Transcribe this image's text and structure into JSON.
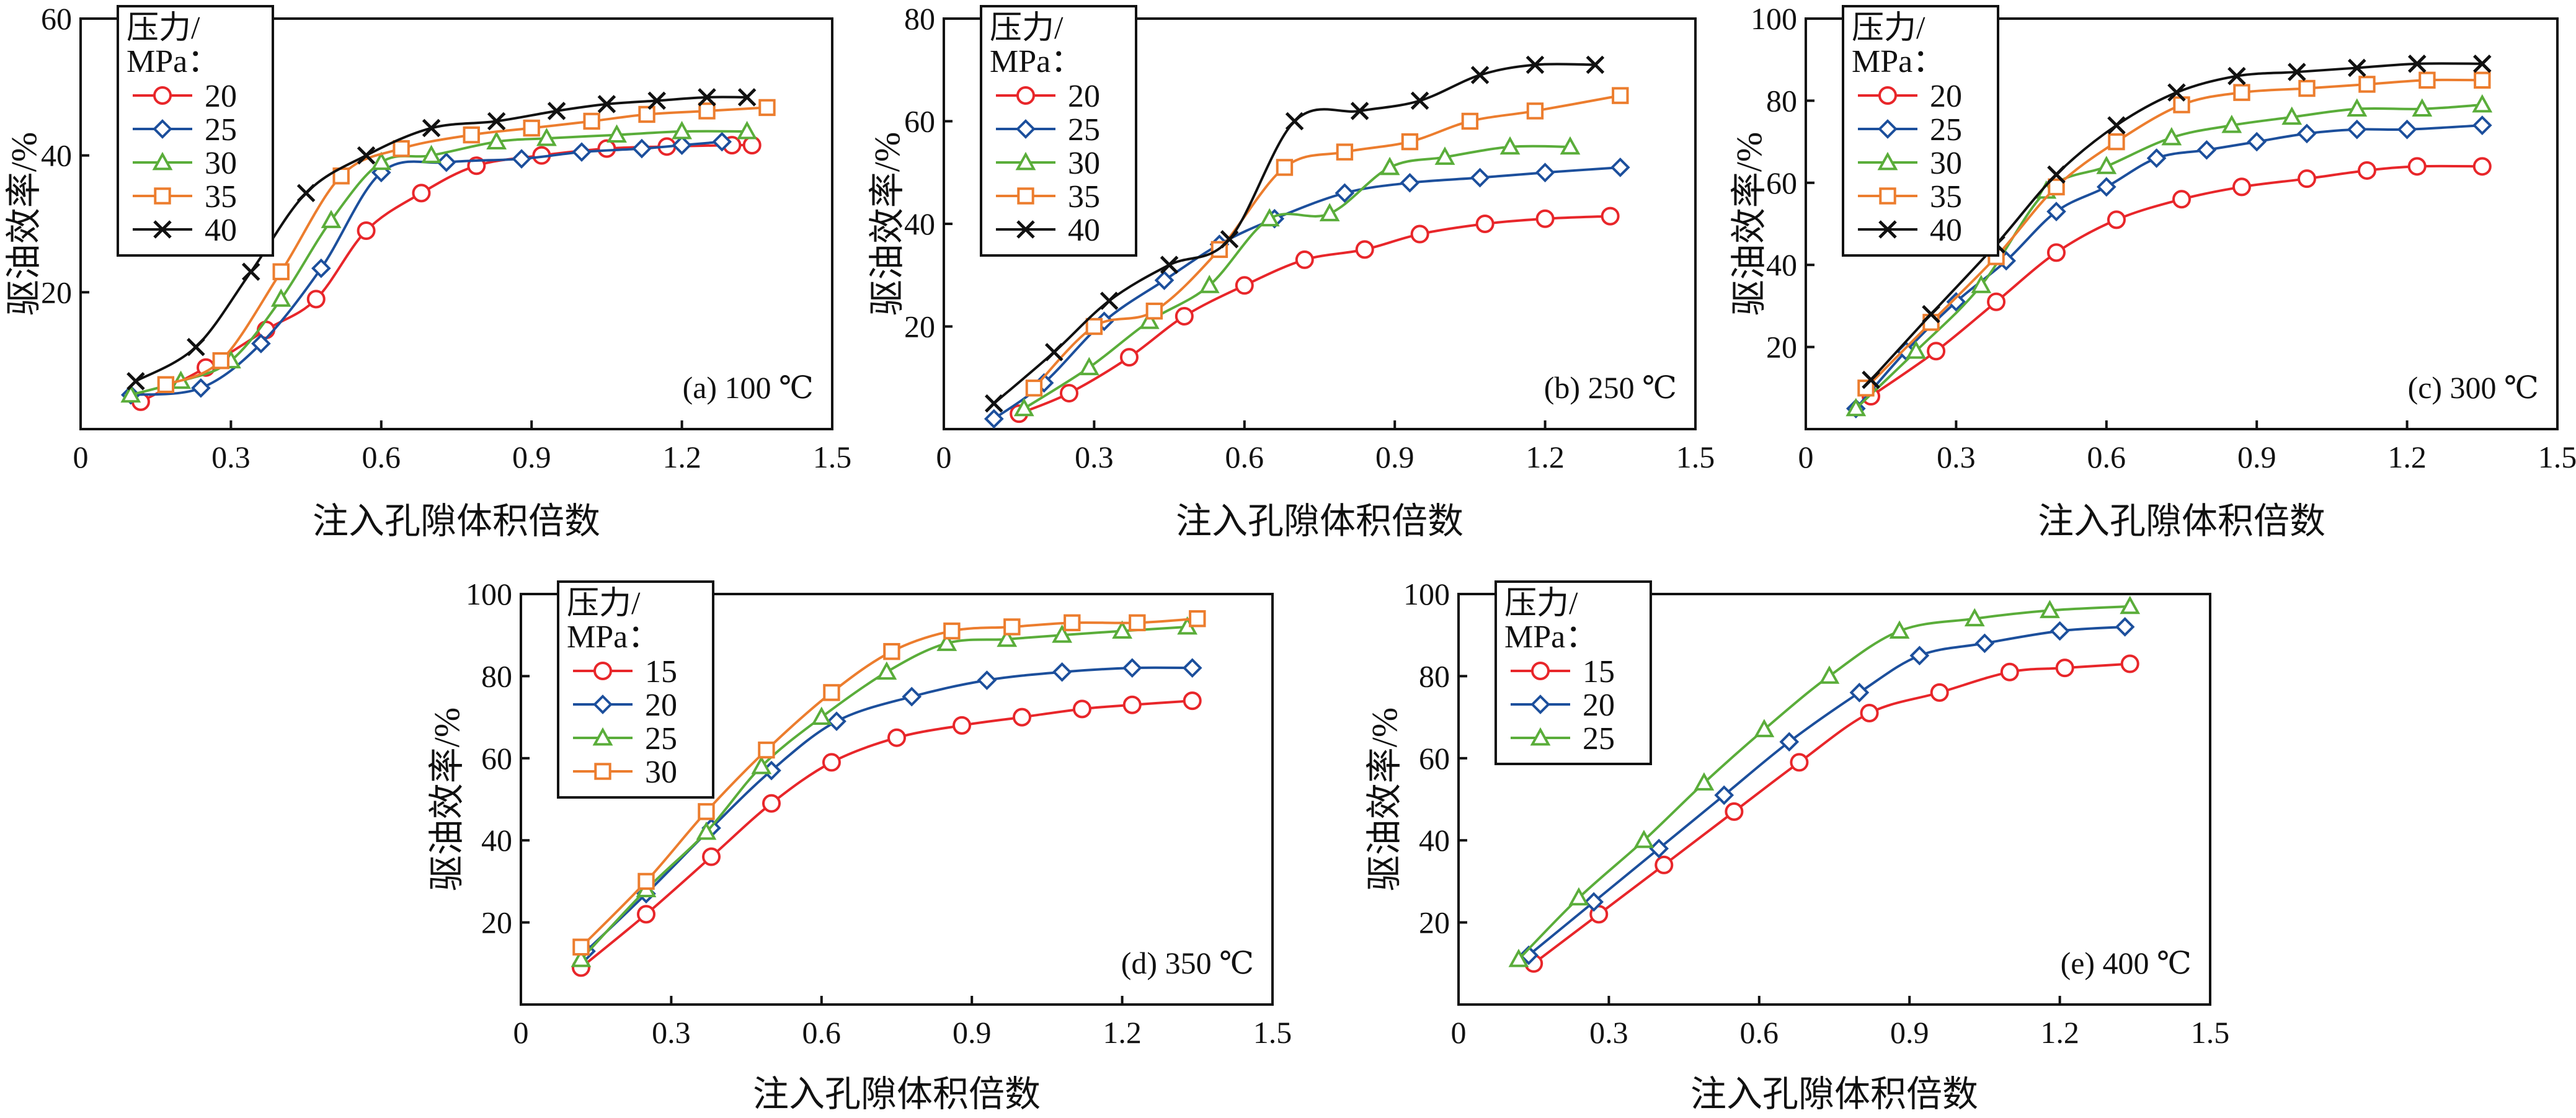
{
  "figure": {
    "xlabel": "注入孔隙体积倍数",
    "ylabel": "驱油效率/%"
  },
  "colors": {
    "15": "#e8262a",
    "20": "#e8262a",
    "25": "#1c4f9c",
    "30": "#5aad3a",
    "35": "#ec7d2e",
    "40": "#111111"
  },
  "markers": {
    "circle": "circle-marker",
    "diamond": "diamond-marker",
    "triangle": "triangle-marker",
    "square": "square-marker",
    "cross": "cross-marker"
  },
  "chart_data": [
    {
      "type": "line",
      "panel_label": "(a) 100 ℃",
      "legend_title": [
        "压力/",
        "MPa："
      ],
      "xlim": [
        0,
        1.5
      ],
      "ylim": [
        0,
        60
      ],
      "xticks": [
        0,
        0.3,
        0.6,
        0.9,
        1.2,
        1.5
      ],
      "xtick_labels": [
        "0",
        "0.3",
        "0.6",
        "0.9",
        "1.2",
        "1.5"
      ],
      "yticks": [
        20,
        40,
        60
      ],
      "ytick_labels": [
        "20",
        "40",
        "60"
      ],
      "series": [
        {
          "name": "20",
          "color_key": "20",
          "marker": "circle",
          "x": [
            0.12,
            0.25,
            0.37,
            0.47,
            0.57,
            0.68,
            0.79,
            0.92,
            1.05,
            1.17,
            1.3,
            1.34
          ],
          "y": [
            4,
            9,
            14.5,
            19,
            29,
            34.5,
            38.5,
            40,
            41,
            41.3,
            41.5,
            41.5
          ]
        },
        {
          "name": "25",
          "color_key": "25",
          "marker": "diamond",
          "x": [
            0.1,
            0.24,
            0.36,
            0.48,
            0.6,
            0.73,
            0.88,
            1.0,
            1.12,
            1.2,
            1.28
          ],
          "y": [
            5,
            6,
            12.5,
            23.5,
            37.5,
            39,
            39.5,
            40.5,
            41,
            41.5,
            42
          ]
        },
        {
          "name": "30",
          "color_key": "30",
          "marker": "triangle",
          "x": [
            0.1,
            0.2,
            0.3,
            0.4,
            0.5,
            0.6,
            0.7,
            0.83,
            0.93,
            1.07,
            1.2,
            1.33
          ],
          "y": [
            5,
            7,
            10,
            19,
            30.5,
            39,
            40,
            42,
            42.5,
            43,
            43.5,
            43.5
          ]
        },
        {
          "name": "35",
          "color_key": "35",
          "marker": "square",
          "x": [
            0.17,
            0.28,
            0.4,
            0.52,
            0.64,
            0.78,
            0.9,
            1.02,
            1.13,
            1.25,
            1.37
          ],
          "y": [
            6.5,
            10,
            23,
            37,
            41,
            43,
            44,
            45,
            46,
            46.5,
            47
          ]
        },
        {
          "name": "40",
          "color_key": "40",
          "marker": "cross",
          "x": [
            0.11,
            0.23,
            0.34,
            0.45,
            0.57,
            0.7,
            0.83,
            0.95,
            1.05,
            1.15,
            1.25,
            1.33
          ],
          "y": [
            7,
            12,
            23,
            34.5,
            40,
            44,
            45,
            46.5,
            47.5,
            48,
            48.5,
            48.5
          ]
        }
      ]
    },
    {
      "type": "line",
      "panel_label": "(b) 250 ℃",
      "legend_title": [
        "压力/",
        "MPa："
      ],
      "xlim": [
        0,
        1.5
      ],
      "ylim": [
        0,
        80
      ],
      "xticks": [
        0,
        0.3,
        0.6,
        0.9,
        1.2,
        1.5
      ],
      "xtick_labels": [
        "0",
        "0.3",
        "0.6",
        "0.9",
        "1.2",
        "1.5"
      ],
      "yticks": [
        20,
        40,
        60,
        80
      ],
      "ytick_labels": [
        "20",
        "40",
        "60",
        "80"
      ],
      "series": [
        {
          "name": "20",
          "color_key": "20",
          "marker": "circle",
          "x": [
            0.15,
            0.25,
            0.37,
            0.48,
            0.6,
            0.72,
            0.84,
            0.95,
            1.08,
            1.2,
            1.33
          ],
          "y": [
            3,
            7,
            14,
            22,
            28,
            33,
            35,
            38,
            40,
            41,
            41.5
          ]
        },
        {
          "name": "25",
          "color_key": "25",
          "marker": "diamond",
          "x": [
            0.1,
            0.2,
            0.32,
            0.44,
            0.55,
            0.66,
            0.8,
            0.93,
            1.07,
            1.2,
            1.35
          ],
          "y": [
            2,
            9,
            21,
            29,
            36,
            41,
            46,
            48,
            49,
            50,
            51
          ]
        },
        {
          "name": "30",
          "color_key": "30",
          "marker": "triangle",
          "x": [
            0.16,
            0.29,
            0.41,
            0.53,
            0.65,
            0.77,
            0.89,
            1.0,
            1.13,
            1.25
          ],
          "y": [
            4,
            12,
            21,
            28,
            41,
            42,
            51,
            53,
            55,
            55
          ]
        },
        {
          "name": "35",
          "color_key": "35",
          "marker": "square",
          "x": [
            0.18,
            0.3,
            0.42,
            0.55,
            0.68,
            0.8,
            0.93,
            1.05,
            1.18,
            1.35
          ],
          "y": [
            8,
            20,
            23,
            35,
            51,
            54,
            56,
            60,
            62,
            65
          ]
        },
        {
          "name": "40",
          "color_key": "40",
          "marker": "cross",
          "x": [
            0.1,
            0.22,
            0.33,
            0.45,
            0.57,
            0.7,
            0.83,
            0.95,
            1.07,
            1.18,
            1.3
          ],
          "y": [
            5,
            15,
            25,
            32,
            37,
            60,
            62,
            64,
            69,
            71,
            71
          ]
        }
      ]
    },
    {
      "type": "line",
      "panel_label": "(c) 300 ℃",
      "legend_title": [
        "压力/",
        "MPa："
      ],
      "xlim": [
        0,
        1.5
      ],
      "ylim": [
        0,
        100
      ],
      "xticks": [
        0,
        0.3,
        0.6,
        0.9,
        1.2,
        1.5
      ],
      "xtick_labels": [
        "0",
        "0.3",
        "0.6",
        "0.9",
        "1.2",
        "1.5"
      ],
      "yticks": [
        20,
        40,
        60,
        80,
        100
      ],
      "ytick_labels": [
        "20",
        "40",
        "60",
        "80",
        "100"
      ],
      "series": [
        {
          "name": "20",
          "color_key": "20",
          "marker": "circle",
          "x": [
            0.13,
            0.26,
            0.38,
            0.5,
            0.62,
            0.75,
            0.87,
            1.0,
            1.12,
            1.22,
            1.35
          ],
          "y": [
            8,
            19,
            31,
            43,
            51,
            56,
            59,
            61,
            63,
            64,
            64
          ]
        },
        {
          "name": "25",
          "color_key": "25",
          "marker": "diamond",
          "x": [
            0.1,
            0.2,
            0.3,
            0.4,
            0.5,
            0.6,
            0.7,
            0.8,
            0.9,
            1.0,
            1.1,
            1.2,
            1.35
          ],
          "y": [
            5,
            19,
            31,
            41,
            53,
            59,
            66,
            68,
            70,
            72,
            73,
            73,
            74
          ]
        },
        {
          "name": "30",
          "color_key": "30",
          "marker": "triangle",
          "x": [
            0.1,
            0.22,
            0.35,
            0.48,
            0.6,
            0.73,
            0.85,
            0.97,
            1.1,
            1.23,
            1.35
          ],
          "y": [
            5,
            19,
            35,
            58,
            64,
            71,
            74,
            76,
            78,
            78,
            79
          ]
        },
        {
          "name": "35",
          "color_key": "35",
          "marker": "square",
          "x": [
            0.12,
            0.25,
            0.38,
            0.5,
            0.62,
            0.75,
            0.87,
            1.0,
            1.12,
            1.24,
            1.35
          ],
          "y": [
            10,
            26,
            42,
            59,
            70,
            79,
            82,
            83,
            84,
            85,
            85
          ]
        },
        {
          "name": "40",
          "color_key": "40",
          "marker": "cross",
          "x": [
            0.13,
            0.25,
            0.38,
            0.5,
            0.62,
            0.74,
            0.86,
            0.98,
            1.1,
            1.22,
            1.35
          ],
          "y": [
            12,
            28,
            45,
            62,
            74,
            82,
            86,
            87,
            88,
            89,
            89
          ]
        }
      ]
    },
    {
      "type": "line",
      "panel_label": "(d) 350 ℃",
      "legend_title": [
        "压力/",
        "MPa："
      ],
      "xlim": [
        0,
        1.5
      ],
      "ylim": [
        0,
        100
      ],
      "xticks": [
        0,
        0.3,
        0.6,
        0.9,
        1.2,
        1.5
      ],
      "xtick_labels": [
        "0",
        "0.3",
        "0.6",
        "0.9",
        "1.2",
        "1.5"
      ],
      "yticks": [
        20,
        40,
        60,
        80,
        100
      ],
      "ytick_labels": [
        "20",
        "40",
        "60",
        "80",
        "100"
      ],
      "series": [
        {
          "name": "15",
          "color_key": "15",
          "marker": "circle",
          "x": [
            0.12,
            0.25,
            0.38,
            0.5,
            0.62,
            0.75,
            0.88,
            1.0,
            1.12,
            1.22,
            1.34
          ],
          "y": [
            9,
            22,
            36,
            49,
            59,
            65,
            68,
            70,
            72,
            73,
            74
          ]
        },
        {
          "name": "20",
          "color_key": "25",
          "marker": "diamond",
          "x": [
            0.13,
            0.25,
            0.38,
            0.5,
            0.63,
            0.78,
            0.93,
            1.08,
            1.22,
            1.34
          ],
          "y": [
            13,
            27,
            43,
            57,
            69,
            75,
            79,
            81,
            82,
            82
          ]
        },
        {
          "name": "25",
          "color_key": "30",
          "marker": "triangle",
          "x": [
            0.12,
            0.25,
            0.37,
            0.48,
            0.6,
            0.73,
            0.85,
            0.97,
            1.08,
            1.2,
            1.33
          ],
          "y": [
            11,
            28,
            42,
            58,
            70,
            81,
            88,
            89,
            90,
            91,
            92
          ]
        },
        {
          "name": "30",
          "color_key": "35",
          "marker": "square",
          "x": [
            0.12,
            0.25,
            0.37,
            0.49,
            0.62,
            0.74,
            0.86,
            0.98,
            1.1,
            1.23,
            1.35
          ],
          "y": [
            14,
            30,
            47,
            62,
            76,
            86,
            91,
            92,
            93,
            93,
            94
          ]
        }
      ]
    },
    {
      "type": "line",
      "panel_label": "(e) 400 ℃",
      "legend_title": [
        "压力/",
        "MPa："
      ],
      "xlim": [
        0,
        1.5
      ],
      "ylim": [
        0,
        100
      ],
      "xticks": [
        0,
        0.3,
        0.6,
        0.9,
        1.2,
        1.5
      ],
      "xtick_labels": [
        "0",
        "0.3",
        "0.6",
        "0.9",
        "1.2",
        "1.5"
      ],
      "yticks": [
        20,
        40,
        60,
        80,
        100
      ],
      "ytick_labels": [
        "20",
        "40",
        "60",
        "80",
        "100"
      ],
      "series": [
        {
          "name": "15",
          "color_key": "15",
          "marker": "circle",
          "x": [
            0.15,
            0.28,
            0.41,
            0.55,
            0.68,
            0.82,
            0.96,
            1.1,
            1.21,
            1.34
          ],
          "y": [
            10,
            22,
            34,
            47,
            59,
            71,
            76,
            81,
            82,
            83
          ]
        },
        {
          "name": "20",
          "color_key": "25",
          "marker": "diamond",
          "x": [
            0.14,
            0.27,
            0.4,
            0.53,
            0.66,
            0.8,
            0.92,
            1.05,
            1.2,
            1.33
          ],
          "y": [
            12,
            25,
            38,
            51,
            64,
            76,
            85,
            88,
            91,
            92
          ]
        },
        {
          "name": "25",
          "color_key": "30",
          "marker": "triangle",
          "x": [
            0.12,
            0.24,
            0.37,
            0.49,
            0.61,
            0.74,
            0.88,
            1.03,
            1.18,
            1.34
          ],
          "y": [
            11,
            26,
            40,
            54,
            67,
            80,
            91,
            94,
            96,
            97
          ]
        }
      ]
    }
  ]
}
